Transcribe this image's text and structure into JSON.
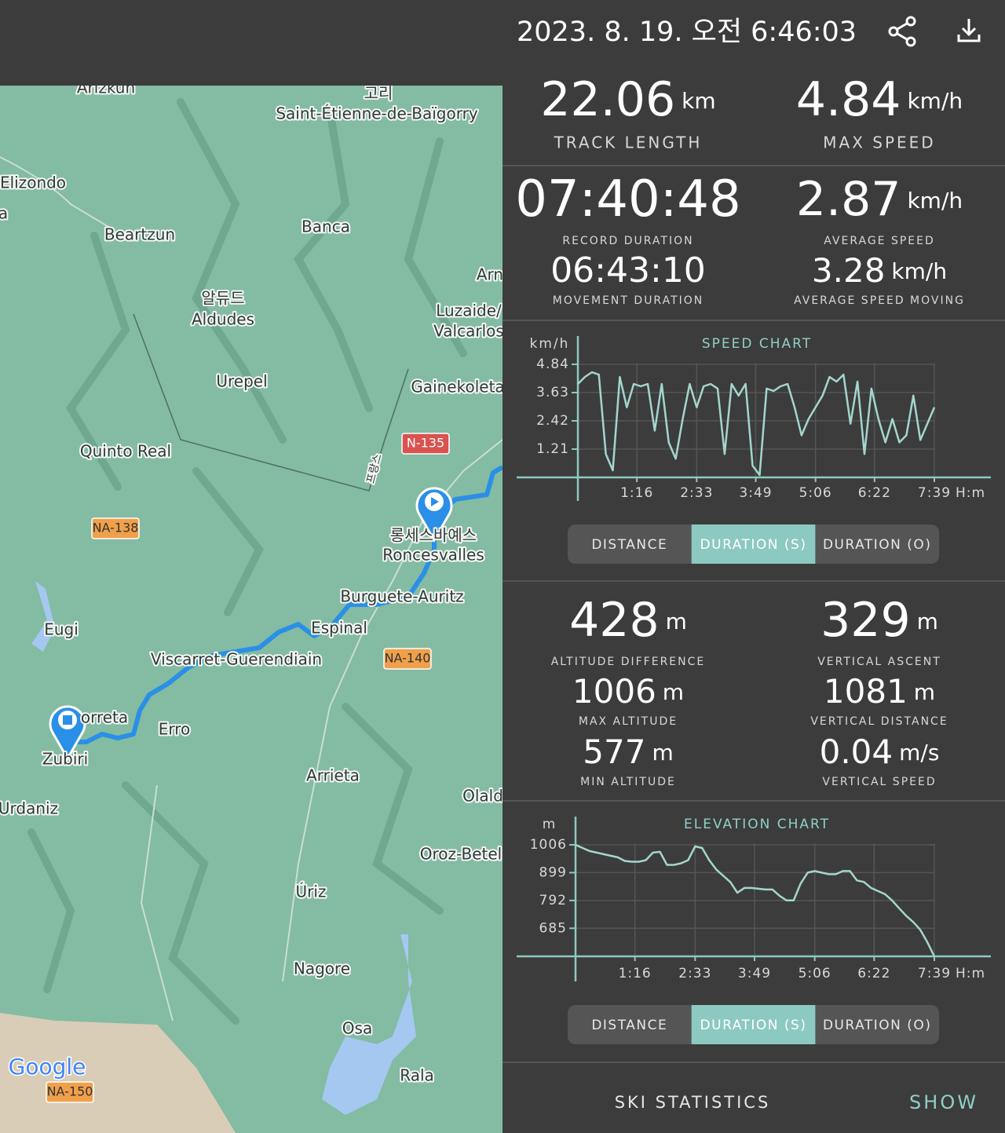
{
  "header": {
    "datetime": "2023. 8. 19. 오전 6:46:03"
  },
  "map": {
    "labels": [
      "Arizkun",
      "고리",
      "Saint-Étienne-de-Baïgorry",
      "Elizondo",
      "a",
      "Beartzun",
      "Banca",
      "Arn",
      "알듀드",
      "Aldudes",
      "Luzaide/",
      "Valcarlos",
      "Urepel",
      "Gainekoleta",
      "Quinto Real",
      "프랑스",
      "롱세스바예스",
      "Roncesvalles",
      "Burguete-Auritz",
      "Eugi",
      "Espinal",
      "Viscarret-Guerendiain",
      "orreta",
      "Erro",
      "Zubiri",
      "Arrieta",
      "Olald",
      "Urdaniz",
      "Oroz-Betel",
      "Úriz",
      "Nagore",
      "Osa",
      "Rala"
    ],
    "shields": [
      "N-135",
      "NA-138",
      "NA-140",
      "NA-150"
    ],
    "google": "Google"
  },
  "stats": [
    {
      "value": "22.06",
      "unit": "km",
      "label": "TRACK LENGTH"
    },
    {
      "value": "4.84",
      "unit": "km/h",
      "label": "MAX SPEED"
    },
    {
      "value": "07:40:48",
      "label": "RECORD DURATION"
    },
    {
      "value": "06:43:10",
      "label": "MOVEMENT DURATION"
    },
    {
      "value": "2.87",
      "unit": "km/h",
      "label": "AVERAGE SPEED"
    },
    {
      "value": "3.28",
      "unit": "km/h",
      "label": "AVERAGE SPEED MOVING"
    },
    {
      "value": "428",
      "unit": "m",
      "label": "ALTITUDE DIFFERENCE"
    },
    {
      "value": "1006",
      "unit": "m",
      "label": "MAX ALTITUDE"
    },
    {
      "value": "577",
      "unit": "m",
      "label": "MIN ALTITUDE"
    },
    {
      "value": "329",
      "unit": "m",
      "label": "VERTICAL ASCENT"
    },
    {
      "value": "1081",
      "unit": "m",
      "label": "VERTICAL DISTANCE"
    },
    {
      "value": "0.04",
      "unit": "m/s",
      "label": "VERTICAL SPEED"
    }
  ],
  "chart_data": [
    {
      "type": "line",
      "title": "SPEED CHART",
      "y_label": "km/h",
      "x_unit": "H:m",
      "color": "#a3d6ce",
      "x": [
        0,
        9,
        18,
        27,
        36,
        45,
        54,
        63,
        72,
        81,
        90,
        99,
        108,
        117,
        126,
        135,
        144,
        153,
        162,
        171,
        180,
        189,
        198,
        207,
        216,
        225,
        234,
        243,
        252,
        261,
        270,
        279,
        288,
        297,
        306,
        315,
        324,
        333,
        342,
        351,
        360,
        369,
        378,
        387,
        396,
        405,
        414,
        423,
        432,
        441,
        450,
        459
      ],
      "values": [
        4.0,
        4.3,
        4.5,
        4.4,
        1.0,
        0.3,
        4.3,
        3.0,
        4.0,
        3.9,
        4.0,
        2.0,
        4.0,
        1.5,
        0.8,
        2.5,
        4.0,
        3.0,
        3.9,
        4.0,
        3.8,
        1.0,
        4.0,
        3.5,
        4.0,
        0.5,
        0.1,
        3.8,
        3.7,
        3.9,
        4.0,
        3.0,
        1.8,
        2.5,
        3.0,
        3.5,
        4.3,
        4.1,
        4.4,
        2.3,
        4.1,
        1.0,
        3.8,
        2.5,
        1.5,
        2.5,
        1.5,
        1.8,
        3.5,
        1.6,
        2.3,
        3.0
      ],
      "xlim": [
        0,
        459
      ],
      "ylim": [
        0,
        4.84
      ],
      "yticks": [
        1.21,
        2.42,
        3.63,
        4.84
      ],
      "xticks": [
        {
          "value": 76,
          "label": "1:16"
        },
        {
          "value": 153,
          "label": "2:33"
        },
        {
          "value": 229,
          "label": "3:49"
        },
        {
          "value": 306,
          "label": "5:06"
        },
        {
          "value": 382,
          "label": "6:22"
        },
        {
          "value": 459,
          "label": "7:39"
        }
      ],
      "grid": true
    },
    {
      "type": "line",
      "title": "ELEVATION CHART",
      "y_label": "m",
      "x_unit": "H:m",
      "color": "#a3d6ce",
      "x": [
        0,
        9,
        18,
        27,
        36,
        45,
        54,
        63,
        72,
        81,
        90,
        99,
        108,
        117,
        126,
        135,
        144,
        153,
        162,
        171,
        180,
        189,
        198,
        207,
        216,
        225,
        234,
        243,
        252,
        261,
        270,
        279,
        288,
        297,
        306,
        315,
        324,
        333,
        342,
        351,
        360,
        369,
        378,
        387,
        396,
        405,
        414,
        423,
        432,
        441,
        450,
        459
      ],
      "values": [
        1006,
        994,
        982,
        976,
        970,
        964,
        958,
        944,
        941,
        941,
        947,
        976,
        979,
        929,
        929,
        935,
        947,
        1000,
        994,
        947,
        911,
        887,
        863,
        822,
        840,
        840,
        837,
        834,
        834,
        810,
        792,
        792,
        857,
        899,
        905,
        899,
        893,
        893,
        905,
        905,
        869,
        863,
        840,
        828,
        816,
        792,
        762,
        733,
        709,
        679,
        632,
        577
      ],
      "xlim": [
        0,
        459
      ],
      "ylim": [
        577,
        1006
      ],
      "yticks": [
        685,
        792,
        899,
        1006
      ],
      "xticks": [
        {
          "value": 76,
          "label": "1:16"
        },
        {
          "value": 153,
          "label": "2:33"
        },
        {
          "value": 229,
          "label": "3:49"
        },
        {
          "value": 306,
          "label": "5:06"
        },
        {
          "value": 382,
          "label": "6:22"
        },
        {
          "value": 459,
          "label": "7:39"
        }
      ],
      "grid": true
    }
  ],
  "toggles": [
    [
      "DISTANCE",
      "DURATION (S)",
      "DURATION (O)"
    ],
    [
      "DISTANCE",
      "DURATION (S)",
      "DURATION (O)"
    ]
  ],
  "footer": {
    "label": "SKI STATISTICS",
    "action": "SHOW"
  }
}
